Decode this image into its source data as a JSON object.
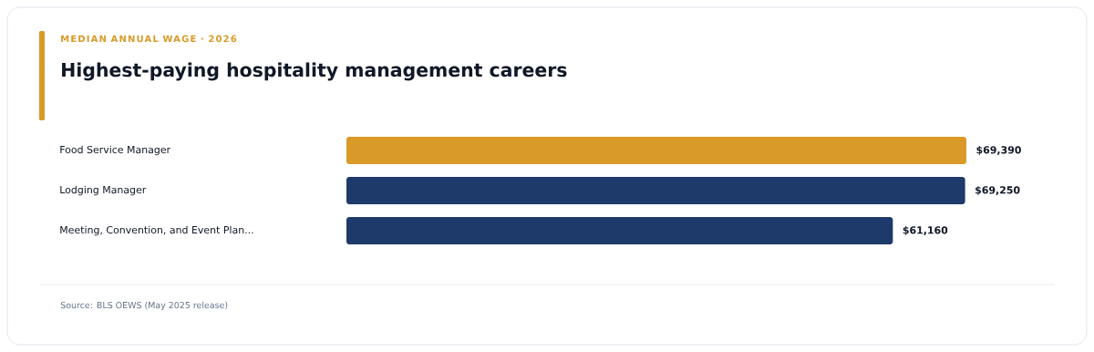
{
  "chart_data": {
    "type": "bar",
    "orientation": "horizontal",
    "subtitle": "MEDIAN ANNUAL WAGE · 2026",
    "title": "Highest-paying hospitality management careers",
    "categories": [
      "Food Service Manager",
      "Lodging Manager",
      "Meeting, Convention, and Event Plan..."
    ],
    "values": [
      69390,
      69250,
      61160
    ],
    "colors": [
      "#d99a27",
      "#1e3a6b",
      "#1e3a6b"
    ],
    "value_labels": [
      "$69,390",
      "$69,250",
      "$61,160"
    ],
    "annotations": [
      "Source: BLS OEWS (May 2025 release)"
    ]
  }
}
